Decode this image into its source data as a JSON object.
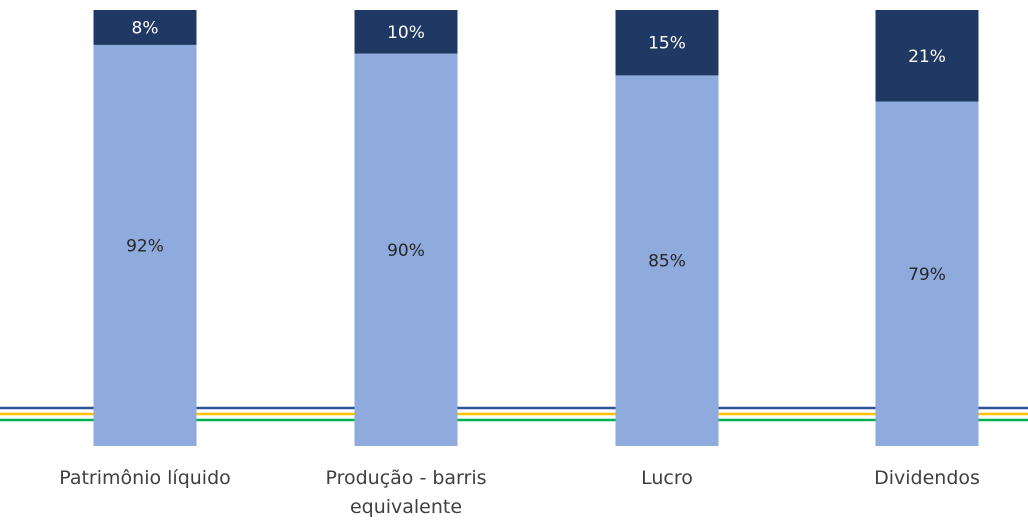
{
  "chart_data": {
    "type": "bar",
    "stacked": true,
    "percent": true,
    "categories": [
      "Patrimônio líquido",
      "Produção - barris equivalente",
      "Lucro",
      "Dividendos"
    ],
    "category_lines": [
      [
        "Patrimônio líquido"
      ],
      [
        "Produção - barris",
        "equivalente"
      ],
      [
        "Lucro"
      ],
      [
        "Dividendos"
      ]
    ],
    "series": [
      {
        "values": [
          92,
          90,
          85,
          79
        ],
        "labels": [
          "92%",
          "90%",
          "85%",
          "79%"
        ],
        "color": "#8faadc",
        "label_color": "#262626"
      },
      {
        "values": [
          8,
          10,
          15,
          21
        ],
        "labels": [
          "8%",
          "10%",
          "15%",
          "21%"
        ],
        "color": "#203864",
        "label_color": "#ffffff"
      }
    ],
    "ylim": [
      0,
      100
    ],
    "grid": false,
    "legend": "none",
    "reference_line_colors": [
      "#2e5597",
      "#ffc000",
      "#00b050"
    ]
  }
}
